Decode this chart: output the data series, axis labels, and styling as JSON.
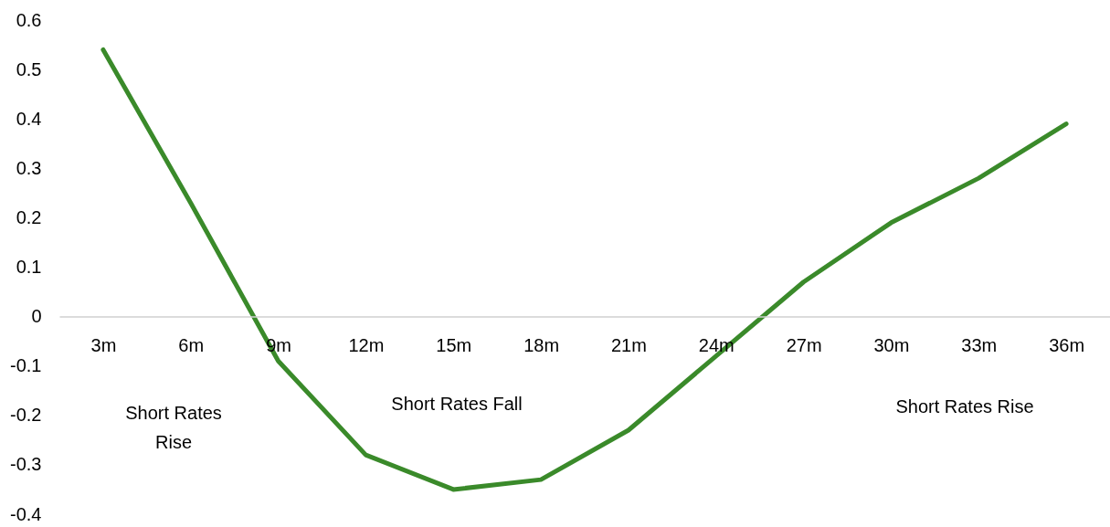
{
  "chart_data": {
    "type": "line",
    "categories": [
      "3m",
      "6m",
      "9m",
      "12m",
      "15m",
      "18m",
      "21m",
      "24m",
      "27m",
      "30m",
      "33m",
      "36m"
    ],
    "series": [
      {
        "color": "#3a8a2a",
        "values": [
          0.54,
          0.23,
          -0.09,
          -0.28,
          -0.35,
          -0.33,
          -0.23,
          -0.08,
          0.07,
          0.19,
          0.28,
          0.39
        ]
      }
    ],
    "ylim": [
      -0.4,
      0.6
    ],
    "yticks": [
      -0.4,
      -0.3,
      -0.2,
      -0.1,
      0,
      0.1,
      0.2,
      0.3,
      0.4,
      0.5,
      0.6
    ],
    "grid": false,
    "marker": "none",
    "line_style": "solid",
    "annotations": [
      "Short Rates\nRise",
      "Short Rates Fall",
      "Short Rates Rise"
    ]
  }
}
